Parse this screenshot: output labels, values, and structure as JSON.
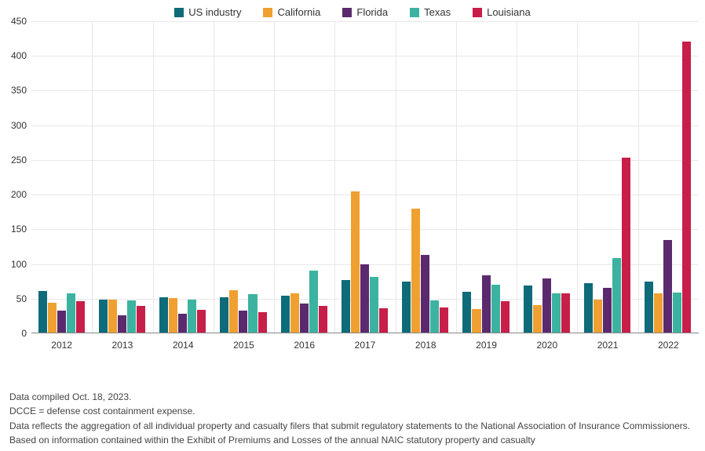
{
  "chart": {
    "type": "bar",
    "background_color": "#ffffff",
    "grid_color": "#e8e8e8",
    "axis_color": "#888888",
    "label_fontsize": 12,
    "legend_fontsize": 13,
    "footnote_fontsize": 12,
    "ylim": [
      0,
      450
    ],
    "ytick_step": 50,
    "yticks": [
      0,
      50,
      100,
      150,
      200,
      250,
      300,
      350,
      400,
      450
    ],
    "categories": [
      "2012",
      "2013",
      "2014",
      "2015",
      "2016",
      "2017",
      "2018",
      "2019",
      "2020",
      "2021",
      "2022"
    ],
    "series": [
      {
        "name": "US industry",
        "color": "#0e6b7a",
        "values": [
          60,
          47,
          51,
          51,
          53,
          76,
          74,
          59,
          68,
          71,
          74
        ]
      },
      {
        "name": "California",
        "color": "#f0a030",
        "values": [
          43,
          47,
          50,
          61,
          56,
          204,
          179,
          34,
          40,
          48,
          56
        ]
      },
      {
        "name": "Florida",
        "color": "#5b2a6e",
        "values": [
          32,
          25,
          27,
          32,
          42,
          98,
          112,
          82,
          78,
          64,
          134
        ]
      },
      {
        "name": "Texas",
        "color": "#3bb3a0",
        "values": [
          56,
          46,
          48,
          55,
          89,
          80,
          46,
          69,
          57,
          107,
          58
        ]
      },
      {
        "name": "Louisiana",
        "color": "#c81e4a",
        "values": [
          45,
          38,
          33,
          29,
          39,
          35,
          36,
          45,
          56,
          252,
          419
        ]
      }
    ],
    "bar_group_width_ratio": 0.78,
    "vgrid_between_groups": true
  },
  "footnotes": {
    "line1": "Data compiled Oct. 18, 2023.",
    "line2": "DCCE = defense cost containment expense.",
    "line3": "Data reflects the aggregation of all individual property and casualty filers that submit regulatory statements to the National Association of Insurance Commissioners.",
    "line4": "Based on information contained within the Exhibit of Premiums and Losses of the annual NAIC statutory property and casualty"
  }
}
